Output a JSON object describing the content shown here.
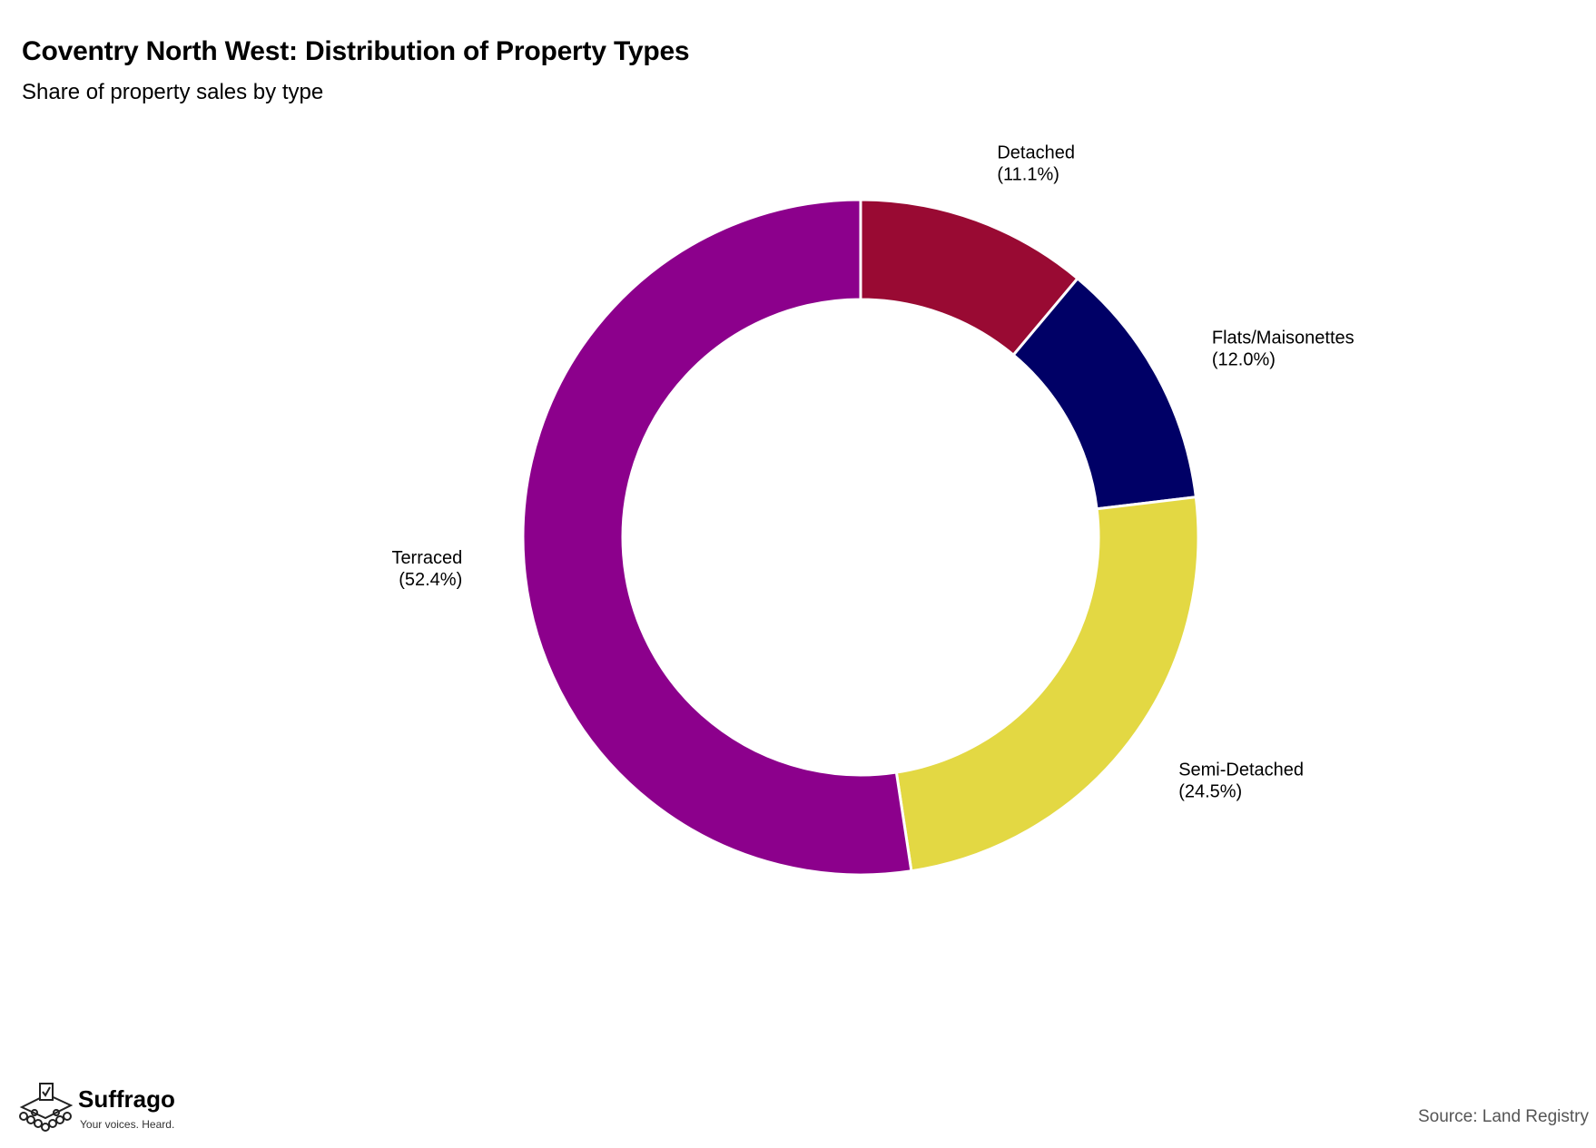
{
  "colors": {
    "Detached": "#990A33",
    "Flats/Maisonettes": "#000066",
    "Semi-Detached": "#E3D843",
    "Terraced": "#8C008C"
  },
  "chart_data": {
    "type": "pie",
    "style": "donut",
    "title": "Coventry North West: Distribution of Property Types",
    "subtitle": "Share of property sales by type",
    "slices": [
      {
        "label": "Detached",
        "value": 11.1,
        "display": "(11.1%)"
      },
      {
        "label": "Flats/Maisonettes",
        "value": 12.0,
        "display": "(12.0%)"
      },
      {
        "label": "Semi-Detached",
        "value": 24.5,
        "display": "(24.5%)"
      },
      {
        "label": "Terraced",
        "value": 52.4,
        "display": "(52.4%)"
      }
    ],
    "legend": "none",
    "source": "Source: Land Registry"
  },
  "branding": {
    "name": "Suffrago",
    "tagline": "Your voices. Heard.",
    "icon": "ballot-box-crowd-icon"
  }
}
